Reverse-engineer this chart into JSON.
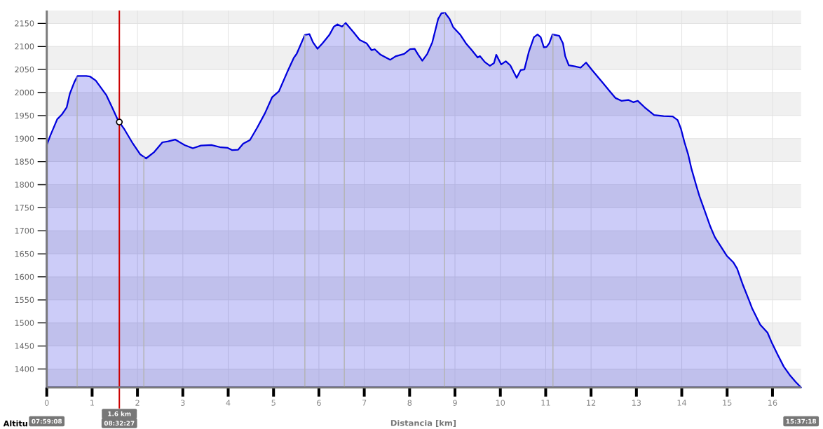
{
  "chart_data": {
    "type": "area",
    "xlabel": "Distancia [km]",
    "ylabel": "Altitu",
    "xlim": [
      0,
      16.63
    ],
    "ylim": [
      1360,
      2178
    ],
    "xticks": [
      0,
      1,
      2,
      3,
      4,
      5,
      6,
      7,
      8,
      9,
      10,
      11,
      12,
      13,
      14,
      15,
      16
    ],
    "yticks": [
      1400,
      1450,
      1500,
      1550,
      1600,
      1650,
      1700,
      1750,
      1800,
      1850,
      1900,
      1950,
      2000,
      2050,
      2100,
      2150
    ],
    "grid": true,
    "series": [
      {
        "color": "#0000dd",
        "x": [
          0,
          0.08,
          0.23,
          0.33,
          0.44,
          0.51,
          0.61,
          0.68,
          0.87,
          0.95,
          1.08,
          1.31,
          1.44,
          1.57,
          1.7,
          1.9,
          2.06,
          2.19,
          2.37,
          2.55,
          2.68,
          2.83,
          3.04,
          3.22,
          3.4,
          3.63,
          3.84,
          3.99,
          4.09,
          4.22,
          4.33,
          4.48,
          4.64,
          4.81,
          4.97,
          5.12,
          5.3,
          5.45,
          5.51,
          5.69,
          5.79,
          5.87,
          5.97,
          6.08,
          6.23,
          6.33,
          6.41,
          6.51,
          6.59,
          6.77,
          6.9,
          7.05,
          7.16,
          7.23,
          7.36,
          7.57,
          7.7,
          7.88,
          8.01,
          8.11,
          8.19,
          8.28,
          8.39,
          8.5,
          8.63,
          8.7,
          8.78,
          8.88,
          8.96,
          9.12,
          9.24,
          9.37,
          9.5,
          9.55,
          9.66,
          9.77,
          9.86,
          9.91,
          10.02,
          10.12,
          10.22,
          10.36,
          10.45,
          10.53,
          10.63,
          10.74,
          10.82,
          10.89,
          10.96,
          11.02,
          11.08,
          11.15,
          11.3,
          11.38,
          11.43,
          11.51,
          11.64,
          11.77,
          11.89,
          12.02,
          12.26,
          12.41,
          12.54,
          12.67,
          12.82,
          12.93,
          13.03,
          13.18,
          13.39,
          13.6,
          13.8,
          13.91,
          13.98,
          14.06,
          14.14,
          14.21,
          14.32,
          14.39,
          14.5,
          14.63,
          14.73,
          14.86,
          14.99,
          15.14,
          15.22,
          15.35,
          15.48,
          15.55,
          15.73,
          15.89,
          15.99,
          16.12,
          16.25,
          16.38,
          16.51,
          16.63
        ],
        "values": [
          1886,
          1907,
          1942,
          1952,
          1968,
          1998,
          2023,
          2036,
          2036,
          2035,
          2026,
          1995,
          1968,
          1940,
          1922,
          1889,
          1866,
          1857,
          1871,
          1892,
          1894,
          1898,
          1886,
          1879,
          1885,
          1886,
          1881,
          1880,
          1875,
          1876,
          1889,
          1897,
          1924,
          1955,
          1990,
          2003,
          2044,
          2076,
          2084,
          2125,
          2127,
          2109,
          2095,
          2107,
          2125,
          2143,
          2148,
          2143,
          2151,
          2130,
          2114,
          2107,
          2092,
          2094,
          2082,
          2071,
          2079,
          2084,
          2094,
          2095,
          2082,
          2069,
          2084,
          2109,
          2160,
          2172,
          2173,
          2160,
          2142,
          2125,
          2107,
          2092,
          2076,
          2079,
          2066,
          2058,
          2064,
          2082,
          2061,
          2068,
          2059,
          2032,
          2049,
          2050,
          2089,
          2120,
          2126,
          2120,
          2098,
          2099,
          2107,
          2126,
          2123,
          2107,
          2079,
          2059,
          2057,
          2054,
          2065,
          2049,
          2021,
          2003,
          1988,
          1982,
          1984,
          1979,
          1982,
          1968,
          1951,
          1949,
          1948,
          1940,
          1922,
          1892,
          1866,
          1836,
          1798,
          1775,
          1745,
          1709,
          1686,
          1666,
          1646,
          1631,
          1618,
          1582,
          1550,
          1532,
          1496,
          1479,
          1456,
          1430,
          1405,
          1387,
          1372,
          1360
        ]
      },
      {
        "type": "scatter",
        "color": "#000000",
        "marker": "circle",
        "x": [
          1.6
        ],
        "values": [
          1936
        ]
      }
    ],
    "ref_lines": [
      {
        "axis": "x",
        "value": 0.67,
        "color": "#b4b4b4"
      },
      {
        "axis": "x",
        "value": 2.14,
        "color": "#b4b4b4"
      },
      {
        "axis": "x",
        "value": 5.69,
        "color": "#b4b4b4"
      },
      {
        "axis": "x",
        "value": 6.56,
        "color": "#b4b4b4"
      },
      {
        "axis": "x",
        "value": 8.77,
        "color": "#b4b4b4"
      },
      {
        "axis": "x",
        "value": 11.16,
        "color": "#b4b4b4"
      },
      {
        "axis": "x",
        "value": 1.6,
        "label": "1.6 km",
        "color": "#cc0000"
      }
    ],
    "bands": [
      {
        "axis": "y",
        "from": 2150,
        "to": 2178,
        "color": "#f0f0f0"
      },
      {
        "axis": "y",
        "from": 2050,
        "to": 2100,
        "color": "#f0f0f0"
      },
      {
        "axis": "y",
        "from": 1950,
        "to": 2000,
        "color": "#f0f0f0"
      },
      {
        "axis": "y",
        "from": 1850,
        "to": 1900,
        "color": "#f0f0f0"
      },
      {
        "axis": "y",
        "from": 1750,
        "to": 1800,
        "color": "#f0f0f0"
      },
      {
        "axis": "y",
        "from": 1650,
        "to": 1700,
        "color": "#f0f0f0"
      },
      {
        "axis": "y",
        "from": 1550,
        "to": 1600,
        "color": "#f0f0f0"
      },
      {
        "axis": "y",
        "from": 1450,
        "to": 1500,
        "color": "#f0f0f0"
      },
      {
        "axis": "y",
        "from": 1360,
        "to": 1400,
        "color": "#f0f0f0"
      }
    ],
    "annotations": [
      "07:59:08",
      "08:32:27",
      "15:37:18"
    ]
  }
}
